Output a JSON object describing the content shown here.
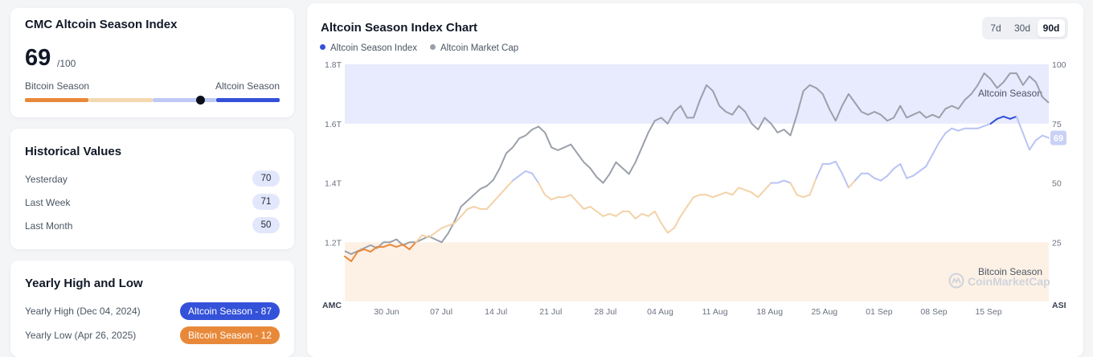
{
  "index_card": {
    "title": "CMC Altcoin Season Index",
    "value": "69",
    "value_suffix": "/100",
    "left_label": "Bitcoin Season",
    "right_label": "Altcoin Season",
    "current_value": 69,
    "scale_colors": [
      "#e8893a",
      "#f3d8b0",
      "#bfc9f5",
      "#3451d9"
    ]
  },
  "historical": {
    "title": "Historical Values",
    "rows": [
      {
        "label": "Yesterday",
        "value": "70"
      },
      {
        "label": "Last Week",
        "value": "71"
      },
      {
        "label": "Last Month",
        "value": "50"
      }
    ]
  },
  "yearly": {
    "title": "Yearly High and Low",
    "rows": [
      {
        "label": "Yearly High (Dec 04, 2024)",
        "badge": "Altcoin Season - 87",
        "color": "#3451d9"
      },
      {
        "label": "Yearly Low (Apr 26, 2025)",
        "badge": "Bitcoin Season - 12",
        "color": "#e8893a"
      }
    ]
  },
  "chart_card": {
    "range_buttons": [
      "7d",
      "30d",
      "90d"
    ],
    "active_range": "90d",
    "watermark": "CoinMarketCap"
  },
  "chart_data": {
    "type": "line",
    "title": "Altcoin Season Index Chart",
    "legend": [
      "Altcoin Season Index",
      "Altcoin Market Cap"
    ],
    "legend_position": "top-left",
    "grid": false,
    "x_ticks": [
      "30 Jun",
      "07 Jul",
      "14 Jul",
      "21 Jul",
      "28 Jul",
      "04 Aug",
      "11 Aug",
      "18 Aug",
      "25 Aug",
      "01 Sep",
      "08 Sep",
      "15 Sep"
    ],
    "x_start_label": "AMC",
    "x_end_label": "ASI",
    "y_left": {
      "ticks": [
        "1.2T",
        "1.4T",
        "1.6T",
        "1.8T"
      ],
      "range_T": [
        1.0,
        1.8
      ]
    },
    "y_right": {
      "ticks": [
        "25",
        "50",
        "75",
        "100"
      ],
      "range": [
        0,
        100
      ]
    },
    "zones": [
      {
        "label": "Altcoin Season",
        "from": 75,
        "to": 100,
        "color": "#e8eafd"
      },
      {
        "label": "Bitcoin Season",
        "from": 0,
        "to": 25,
        "color": "#fdf1e6"
      }
    ],
    "current_index": "69",
    "series": [
      {
        "name": "Altcoin Season Index",
        "axis": "right",
        "colors": {
          "bitcoin": "#e8893a",
          "neutral_low": "#f3d2a8",
          "neutral_high": "#b9c3f4",
          "altcoin": "#2f4fd6"
        },
        "values": [
          19,
          17,
          21,
          22,
          21,
          23,
          23,
          24,
          23,
          24,
          22,
          25,
          28,
          27,
          29,
          31,
          32,
          33,
          36,
          39,
          40,
          39,
          39,
          42,
          45,
          48,
          51,
          53,
          55,
          54,
          50,
          45,
          43,
          44,
          44,
          45,
          42,
          39,
          40,
          38,
          36,
          37,
          36,
          38,
          38,
          35,
          37,
          36,
          38,
          33,
          29,
          31,
          36,
          40,
          44,
          45,
          45,
          44,
          45,
          46,
          45,
          48,
          47,
          46,
          44,
          47,
          50,
          50,
          51,
          50,
          45,
          44,
          45,
          52,
          58,
          58,
          59,
          54,
          48,
          51,
          54,
          54,
          52,
          51,
          53,
          56,
          58,
          52,
          53,
          55,
          57,
          62,
          67,
          71,
          73,
          72,
          73,
          73,
          73,
          74,
          75,
          77,
          78,
          77,
          78,
          71,
          64,
          68,
          70,
          69
        ]
      },
      {
        "name": "Altcoin Market Cap",
        "axis": "left",
        "unit": "T",
        "color": "#9aa0aa",
        "values": [
          1.17,
          1.16,
          1.17,
          1.18,
          1.19,
          1.18,
          1.2,
          1.2,
          1.21,
          1.19,
          1.2,
          1.2,
          1.21,
          1.22,
          1.21,
          1.2,
          1.23,
          1.27,
          1.32,
          1.34,
          1.36,
          1.38,
          1.39,
          1.41,
          1.45,
          1.5,
          1.52,
          1.55,
          1.56,
          1.58,
          1.59,
          1.57,
          1.52,
          1.51,
          1.52,
          1.53,
          1.5,
          1.47,
          1.45,
          1.42,
          1.4,
          1.43,
          1.47,
          1.45,
          1.43,
          1.47,
          1.52,
          1.57,
          1.61,
          1.62,
          1.6,
          1.64,
          1.66,
          1.62,
          1.62,
          1.68,
          1.73,
          1.71,
          1.66,
          1.64,
          1.63,
          1.66,
          1.64,
          1.6,
          1.58,
          1.62,
          1.6,
          1.57,
          1.58,
          1.56,
          1.63,
          1.71,
          1.73,
          1.72,
          1.7,
          1.65,
          1.61,
          1.66,
          1.7,
          1.67,
          1.64,
          1.63,
          1.64,
          1.63,
          1.61,
          1.62,
          1.66,
          1.62,
          1.63,
          1.64,
          1.62,
          1.63,
          1.62,
          1.65,
          1.66,
          1.65,
          1.68,
          1.7,
          1.73,
          1.77,
          1.75,
          1.72,
          1.74,
          1.77,
          1.77,
          1.73,
          1.76,
          1.74,
          1.69,
          1.67
        ]
      }
    ]
  }
}
